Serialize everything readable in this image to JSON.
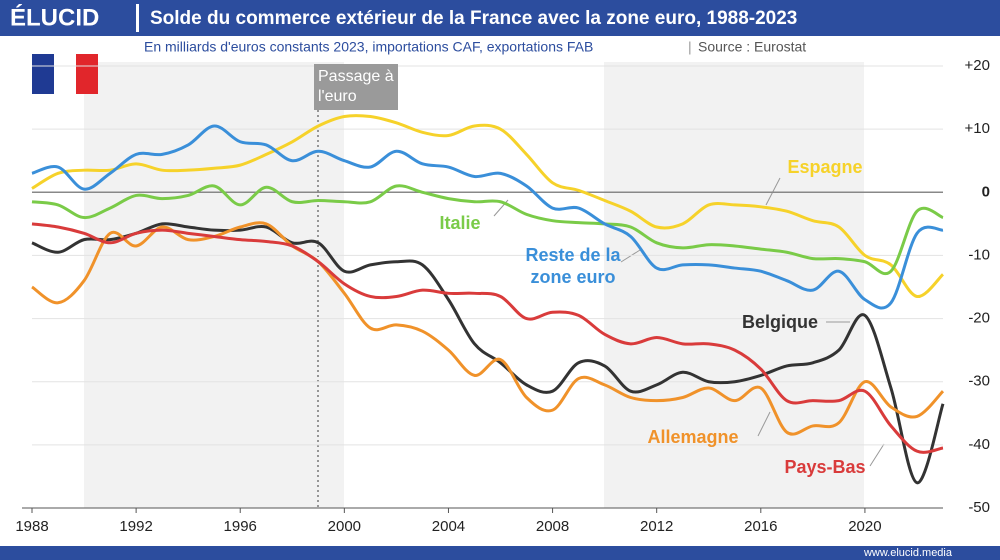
{
  "logo": "ÉLUCID",
  "footer": "www.elucid.media",
  "chart_data": {
    "type": "line",
    "title": "Solde du commerce extérieur de la France avec la zone euro, 1988-2023",
    "subtitle": "En milliards d'euros constants 2023, importations CAF, exportations FAB",
    "source": "Source : Eurostat",
    "annotation": "Passage à l'euro",
    "x": [
      1988,
      1989,
      1990,
      1991,
      1992,
      1993,
      1994,
      1995,
      1996,
      1997,
      1998,
      1999,
      2000,
      2001,
      2002,
      2003,
      2004,
      2005,
      2006,
      2007,
      2008,
      2009,
      2010,
      2011,
      2012,
      2013,
      2014,
      2015,
      2016,
      2017,
      2018,
      2019,
      2020,
      2021,
      2022,
      2023
    ],
    "xlim": [
      1988,
      2023
    ],
    "xticks": [
      1988,
      1992,
      1996,
      2000,
      2004,
      2008,
      2012,
      2016,
      2020
    ],
    "ylim": [
      -50,
      20
    ],
    "yticks": [
      {
        "value": 20,
        "label": "+20"
      },
      {
        "value": 10,
        "label": "+10"
      },
      0,
      -10,
      -20,
      -30,
      -40,
      -50
    ],
    "grid": true,
    "series": [
      {
        "name": "Espagne",
        "color": "#f6d22a",
        "values": [
          0.6,
          3,
          3.5,
          3.5,
          4.5,
          3.5,
          3.5,
          3.8,
          4.3,
          6,
          8,
          10.5,
          12,
          12,
          11,
          9.5,
          9,
          10.5,
          10,
          6,
          1.5,
          0.3,
          -1.3,
          -3,
          -5.5,
          -5,
          -2,
          -2,
          -2.3,
          -3,
          -4.5,
          -5.5,
          -10,
          -11.5,
          -16.5,
          -13
        ]
      },
      {
        "name": "Italie",
        "color": "#7acb48",
        "values": [
          -1.5,
          -2,
          -4,
          -2.5,
          -0.5,
          -1,
          -0.5,
          1,
          -2,
          0.8,
          -1.5,
          -1.3,
          -1.5,
          -1.5,
          1,
          0,
          -1,
          -1.5,
          -1.5,
          -3.5,
          -4.5,
          -4.8,
          -5,
          -5.5,
          -8,
          -8.8,
          -8.3,
          -8.5,
          -9,
          -9.5,
          -10.5,
          -10.5,
          -11,
          -12.5,
          -3,
          -4
        ]
      },
      {
        "name": "Reste de la zone euro",
        "color": "#3a8fd9",
        "values": [
          3,
          4,
          0.5,
          3,
          6,
          6,
          7.5,
          10.5,
          8,
          7.5,
          5,
          6.5,
          5,
          4,
          6.5,
          4.5,
          4,
          2.5,
          3,
          1,
          -2.5,
          -2.5,
          -5,
          -7,
          -12,
          -11.5,
          -11.5,
          -12,
          -12.5,
          -14,
          -15.5,
          -12.5,
          -17,
          -17.5,
          -6.5,
          -6
        ]
      },
      {
        "name": "Belgique",
        "color": "#333333",
        "values": [
          -8,
          -9.5,
          -7.5,
          -7.5,
          -6.5,
          -5,
          -5.5,
          -6,
          -6,
          -5.5,
          -8,
          -8,
          -12.5,
          -11.5,
          -11,
          -11.5,
          -17,
          -24,
          -27,
          -30.5,
          -31.5,
          -27,
          -27.5,
          -31.5,
          -30.5,
          -28.5,
          -30,
          -30,
          -29,
          -27.5,
          -27,
          -25,
          -19.5,
          -31,
          -46,
          -33.5
        ]
      },
      {
        "name": "Allemagne",
        "color": "#f0922a",
        "values": [
          -15,
          -17.5,
          -14,
          -6.5,
          -8.5,
          -5.5,
          -7.5,
          -7,
          -5.5,
          -5,
          -8.5,
          -11,
          -16,
          -21.5,
          -21,
          -22,
          -25,
          -29,
          -26.5,
          -32.5,
          -34.5,
          -29.5,
          -30.5,
          -32.5,
          -33,
          -32.5,
          -31,
          -33,
          -31,
          -38,
          -37,
          -36.5,
          -30,
          -34,
          -35.5,
          -31.5
        ]
      },
      {
        "name": "Pays-Bas",
        "color": "#d93b3b",
        "values": [
          -5,
          -5.5,
          -6.5,
          -8,
          -6.5,
          -6,
          -6.5,
          -7,
          -7.5,
          -7.8,
          -8.5,
          -11,
          -14.5,
          -16.5,
          -16.5,
          -15.5,
          -16,
          -16,
          -16.5,
          -20,
          -19,
          -19.5,
          -22.5,
          -24,
          -23,
          -24,
          -24,
          -25,
          -28,
          -33,
          -33,
          -33,
          -31.5,
          -37,
          -41,
          -40.5
        ]
      }
    ]
  }
}
